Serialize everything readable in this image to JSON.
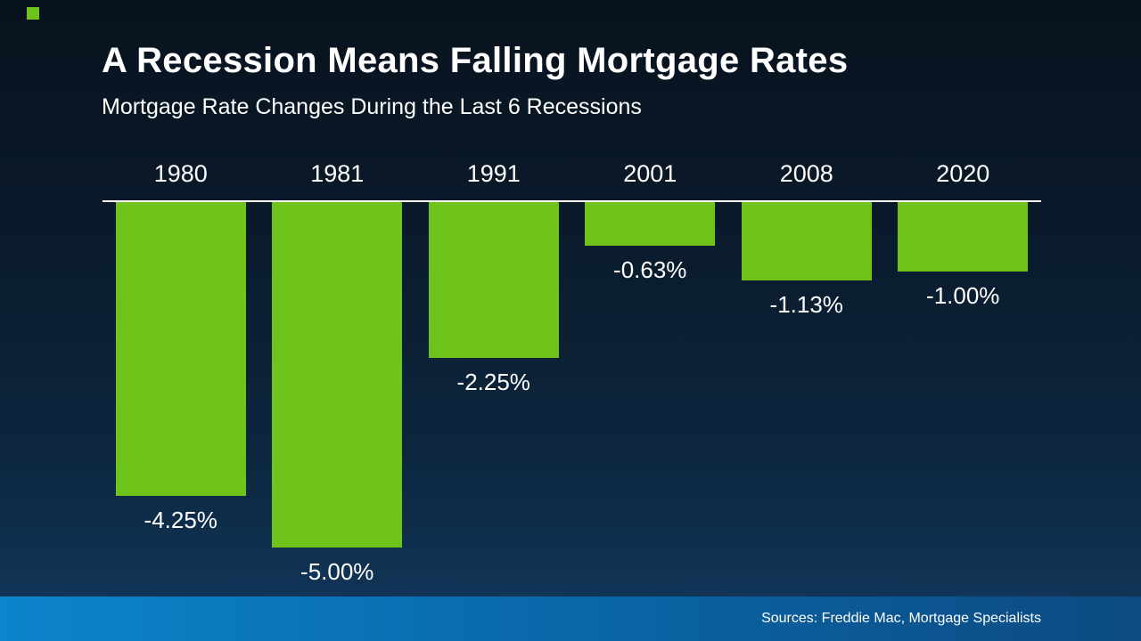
{
  "header": {
    "title": "A Recession Means Falling Mortgage Rates",
    "subtitle": "Mortgage Rate Changes During the Last 6 Recessions"
  },
  "chart_data": {
    "type": "bar",
    "orientation": "vertical-downward",
    "title": "A Recession Means Falling Mortgage Rates",
    "subtitle": "Mortgage Rate Changes During the Last 6 Recessions",
    "categories": [
      "1980",
      "1981",
      "1991",
      "2001",
      "2008",
      "2020"
    ],
    "values": [
      -4.25,
      -5.0,
      -2.25,
      -0.63,
      -1.13,
      -1.0
    ],
    "value_labels": [
      "-4.25%",
      "-5.00%",
      "-2.25%",
      "-0.63%",
      "-1.13%",
      "-1.00%"
    ],
    "unit": "%",
    "ylim": [
      -5.0,
      0
    ],
    "grid": false,
    "legend": false,
    "bar_color": "#6fc41c",
    "baseline_color": "#ffffff"
  },
  "footer": {
    "source": "Sources: Freddie Mac, Mortgage Specialists"
  },
  "colors": {
    "background_top": "#08121d",
    "background_bottom": "#12395f",
    "bar_green": "#6fc41c",
    "footer_gradient_left": "#0c85cc",
    "footer_gradient_right": "#0c4a82",
    "text": "#ffffff"
  }
}
